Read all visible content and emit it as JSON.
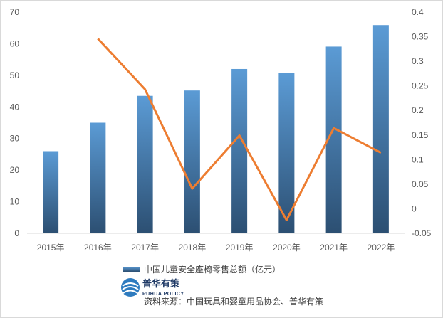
{
  "chart_data": {
    "type": "bar+line",
    "categories": [
      "2015年",
      "2016年",
      "2017年",
      "2018年",
      "2019年",
      "2020年",
      "2021年",
      "2022年"
    ],
    "series": [
      {
        "name": "中国儿童安全座椅零售总额（亿元）",
        "type": "bar",
        "axis": "left",
        "values": [
          26,
          35,
          43.5,
          45.2,
          52,
          50.8,
          59.1,
          65.9
        ]
      },
      {
        "type": "line",
        "axis": "right",
        "values": [
          null,
          0.346,
          0.243,
          0.041,
          0.149,
          -0.023,
          0.164,
          0.114
        ]
      }
    ],
    "left_axis": {
      "ylim": [
        0,
        70
      ],
      "ticks": [
        "0",
        "10",
        "20",
        "30",
        "40",
        "50",
        "60",
        "70"
      ]
    },
    "right_axis": {
      "ylim": [
        -0.05,
        0.4
      ],
      "ticks": [
        "-0.05",
        "0",
        "0.05",
        "0.1",
        "0.15",
        "0.2",
        "0.25",
        "0.3",
        "0.35",
        "0.4"
      ]
    },
    "grid": false,
    "legend_position": "bottom",
    "colors": {
      "bar_top": "#5b9bd5",
      "bar_bottom": "#2c4f72",
      "line": "#ed7d31",
      "axis": "#d9d9d9"
    }
  },
  "footer": {
    "logo_cn": "普华有策",
    "logo_en": "PUHUA POLICY",
    "source": "资料来源：中国玩具和婴童用品协会、普华有策"
  }
}
